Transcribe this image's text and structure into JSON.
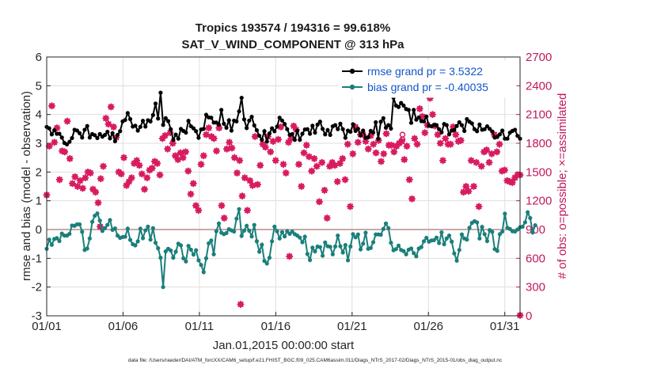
{
  "chart_data": {
    "type": "line",
    "title_line1": "Tropics 193574 / 194316 = 99.618%",
    "title_line2": "SAT_V_WIND_COMPONENT @ 313 hPa",
    "xlabel": "Jan.01,2015 00:00:00 start",
    "ylabel": "rmse and bias (model - observation)",
    "y2label": "# of obs: o=possible; ×=assimilated",
    "footnote": "data file: /Users/raeder/DAI/ATM_forcXX/CAM6_setup/f.e21.FHIST_BGC.f09_025.CAM6assim.011/Diags_NTrS_2017-02/Diags_NTrS_2015-01/obs_diag_output.nc",
    "xlim": [
      1,
      32
    ],
    "ylim": [
      -3,
      6
    ],
    "y2lim": [
      0,
      2700
    ],
    "xticks": [
      1,
      6,
      11,
      16,
      21,
      26,
      31
    ],
    "xtick_labels": [
      "01/01",
      "01/06",
      "01/11",
      "01/16",
      "01/21",
      "01/26",
      "01/31"
    ],
    "yticks": [
      -3,
      -2,
      -1,
      0,
      1,
      2,
      3,
      4,
      5,
      6
    ],
    "ytick_labels": [
      "-3",
      "-2",
      "-1",
      "0",
      "1",
      "2",
      "3",
      "4",
      "5",
      "6"
    ],
    "y2ticks": [
      0,
      300,
      600,
      900,
      1200,
      1500,
      1800,
      2100,
      2400,
      2700
    ],
    "y2tick_labels": [
      "0",
      "300",
      "600",
      "900",
      "1200",
      "1500",
      "1800",
      "2100",
      "2400",
      "2700"
    ],
    "colors": {
      "rmse": "#000000",
      "bias": "#1a7f7a",
      "obs": "#d81b60",
      "zero_line": "#c9a9a9"
    },
    "legend": [
      {
        "name": "rmse",
        "label": "rmse grand pr = 3.5322"
      },
      {
        "name": "bias",
        "label": "bias grand pr = -0.40035"
      }
    ],
    "series": [
      {
        "name": "rmse",
        "values": [
          3.57,
          3.52,
          3.31,
          3.45,
          3.33,
          3.33,
          3.2,
          3.01,
          2.96,
          3.05,
          3.18,
          3.47,
          3.44,
          3.35,
          3.2,
          3.47,
          3.6,
          3.2,
          3.32,
          3.28,
          3.18,
          3.32,
          3.23,
          3.29,
          3.4,
          3.17,
          3.35,
          3.07,
          3.29,
          3.42,
          3.76,
          3.81,
          4.05,
          3.84,
          3.58,
          3.61,
          3.44,
          3.57,
          3.78,
          3.58,
          3.8,
          3.76,
          3.98,
          4.38,
          3.86,
          4.76,
          3.64,
          3.87,
          3.77,
          3.49,
          3.12,
          3.3,
          3.16,
          3.5,
          3.43,
          3.37,
          3.78,
          3.59,
          3.52,
          3.42,
          3.19,
          3.48,
          3.5,
          3.99,
          3.9,
          3.89,
          3.72,
          3.72,
          3.65,
          4.16,
          3.68,
          3.54,
          3.8,
          3.44,
          3.79,
          3.76,
          4.11,
          4.58,
          3.83,
          3.53,
          3.79,
          3.92,
          3.62,
          3.45,
          3.26,
          3.12,
          3.42,
          3.06,
          3.34,
          3.52,
          3.42,
          3.58,
          3.89,
          3.79,
          3.67,
          3.49,
          3.29,
          3.32,
          3.12,
          3.43,
          3.12,
          3.33,
          3.48,
          3.49,
          3.33,
          3.61,
          3.37,
          3.65,
          3.75,
          3.5,
          3.31,
          3.46,
          3.29,
          3.59,
          3.63,
          3.49,
          3.68,
          3.49,
          3.19,
          3.44,
          3.4,
          3.66,
          3.43,
          3.5,
          3.28,
          3.44,
          3.19,
          3.21,
          3.43,
          3.37,
          3.73,
          3.16,
          3.75,
          3.87,
          3.54,
          3.63,
          3.51,
          4.59,
          4.31,
          4.26,
          4.4,
          4.31,
          4.19,
          4.16,
          3.71,
          4.16,
          3.82,
          3.9,
          3.77,
          3.76,
          3.93,
          3.61,
          3.59,
          3.64,
          3.63,
          3.49,
          3.38,
          3.67,
          3.63,
          3.31,
          3.44,
          3.46,
          3.6,
          3.73,
          3.63,
          3.43,
          3.84,
          3.75,
          3.69,
          3.49,
          3.42,
          3.65,
          3.47,
          3.49,
          3.59,
          3.5,
          3.41,
          3.2,
          3.22,
          3.31,
          3.44,
          3.16,
          3.16,
          3.37,
          3.43,
          3.47,
          3.26,
          3.16
        ]
      },
      {
        "name": "bias",
        "values": [
          -0.67,
          -0.35,
          -0.53,
          -0.33,
          -0.3,
          -0.4,
          -0.14,
          -0.21,
          -0.21,
          -0.15,
          0.14,
          0.13,
          0.18,
          0.18,
          -0.08,
          -0.71,
          -0.66,
          -0.31,
          0.27,
          0.48,
          0.56,
          0.31,
          -0.05,
          0.05,
          0.16,
          0.33,
          -0.01,
          0.04,
          -0.21,
          -0.29,
          -0.26,
          -0.25,
          0.03,
          -0.36,
          -0.51,
          -0.55,
          -0.41,
          0.03,
          -0.3,
          -0.03,
          0.1,
          -0.35,
          0.05,
          -0.46,
          -0.65,
          -0.98,
          -2.0,
          -0.76,
          -0.67,
          -0.73,
          -0.98,
          -0.77,
          -0.49,
          -0.55,
          -1.0,
          -1.11,
          -0.57,
          -0.7,
          -0.87,
          -0.72,
          -1.07,
          -1.23,
          -1.48,
          -1.0,
          -0.48,
          -0.38,
          -0.86,
          -0.06,
          0.21,
          -0.11,
          -0.16,
          -0.12,
          0.01,
          -0.03,
          -0.07,
          0.38,
          0.71,
          -0.22,
          -0.04,
          0.13,
          -0.04,
          -0.24,
          0.16,
          -0.41,
          -0.77,
          -0.53,
          -1.09,
          -1.18,
          -0.98,
          -0.41,
          0.1,
          -0.06,
          -0.31,
          -0.09,
          -0.24,
          -0.06,
          -0.15,
          -0.07,
          -0.16,
          -0.21,
          -0.28,
          -0.44,
          -0.25,
          -0.85,
          -1.06,
          -0.63,
          -0.76,
          -0.59,
          -0.61,
          -0.91,
          -0.45,
          -0.58,
          -0.6,
          -0.86,
          -0.59,
          -0.21,
          -0.58,
          -0.8,
          -0.54,
          -1.07,
          -0.59,
          -0.16,
          -0.27,
          -0.17,
          -0.69,
          -0.49,
          -0.11,
          -0.67,
          -0.64,
          -0.44,
          -0.17,
          -0.17,
          -0.18,
          0.02,
          0.21,
          0.05,
          -0.46,
          -0.72,
          -0.68,
          -0.56,
          -0.71,
          -0.75,
          -0.86,
          -0.7,
          -0.66,
          -0.82,
          -0.93,
          -0.66,
          -0.61,
          -0.41,
          -0.29,
          -0.42,
          -0.38,
          -0.37,
          -0.28,
          -0.47,
          -0.1,
          -0.51,
          -0.31,
          -0.21,
          -0.42,
          -0.83,
          -1.08,
          -0.71,
          -0.17,
          -0.31,
          -0.35,
          0.06,
          0.23,
          0.29,
          0.25,
          -0.31,
          0.09,
          -0.16,
          -0.4,
          -0.02,
          -0.08,
          -0.68,
          -0.74,
          -0.16,
          -0.07,
          0.55,
          0.06,
          0.02,
          -0.06,
          -0.07,
          0.0,
          0.08,
          0.1,
          0.25,
          0.6,
          0.4,
          -0.1,
          0.15
        ]
      },
      {
        "name": "obs_assimilated",
        "values": [
          1260,
          1770,
          2190,
          1810,
          1960,
          1420,
          1720,
          1710,
          2030,
          1640,
          1380,
          1450,
          1350,
          1410,
          1330,
          1440,
          1500,
          1490,
          1320,
          1290,
          1180,
          1430,
          1560,
          2060,
          2000,
          2180,
          1970,
          1860,
          1500,
          1480,
          1650,
          1360,
          1400,
          1440,
          1590,
          1620,
          1570,
          1480,
          1320,
          1440,
          1520,
          1540,
          1610,
          1590,
          1470,
          1850,
          1880,
          1740,
          1910,
          1800,
          1670,
          1630,
          1700,
          1650,
          1710,
          1510,
          1270,
          1380,
          1150,
          1100,
          1580,
          1670,
          1890,
          1960,
          1870,
          1850,
          1720,
          1960,
          1150,
          1020,
          1740,
          1810,
          1750,
          1650,
          1490,
          1620,
          1250,
          1440,
          1100,
          1410,
          1360,
          1870,
          1370,
          1570,
          1790,
          1760,
          1870,
          1710,
          1820,
          1620,
          1840,
          1970,
          1580,
          1490,
          1810,
          1850,
          1980,
          1940,
          1580,
          1350,
          1700,
          1780,
          1660,
          1510,
          1640,
          1560,
          1190,
          1600,
          1310,
          1020,
          1560,
          1600,
          1570,
          1400,
          1590,
          1640,
          1420,
          1790,
          1140,
          1690,
          1970,
          1810,
          1890,
          1890,
          1820,
          1740,
          1880,
          1790,
          1700,
          1830,
          1610,
          1690,
          1900,
          1780,
          1780,
          1710,
          1770,
          1800,
          1820,
          1630,
          1770,
          1420,
          1220,
          1850,
          1790,
          2160,
          2080,
          1910,
          1990,
          2270,
          2100,
          1980,
          1890,
          1800,
          1620,
          1850,
          1790,
          1790,
          1970,
          1890,
          1820,
          1830,
          1290,
          1350,
          1300,
          1620,
          1350,
          1600,
          1140,
          1560,
          1710,
          1730,
          1600,
          1690,
          1890,
          1710,
          1790,
          1510,
          1520,
          1410,
          1400,
          1390,
          1440,
          1470,
          1470
        ]
      }
    ],
    "obs_assimilated_outliers": [
      {
        "x": 4.5,
        "y2": 930
      },
      {
        "x": 13.7,
        "y2": 120
      },
      {
        "x": 16.9,
        "y2": 620
      },
      {
        "x": 32.0,
        "y2": 5
      }
    ],
    "obs_possible_markers": [
      {
        "x": 24.3,
        "y2": 1890
      },
      {
        "x": 24.3,
        "y2": 1840
      }
    ]
  }
}
